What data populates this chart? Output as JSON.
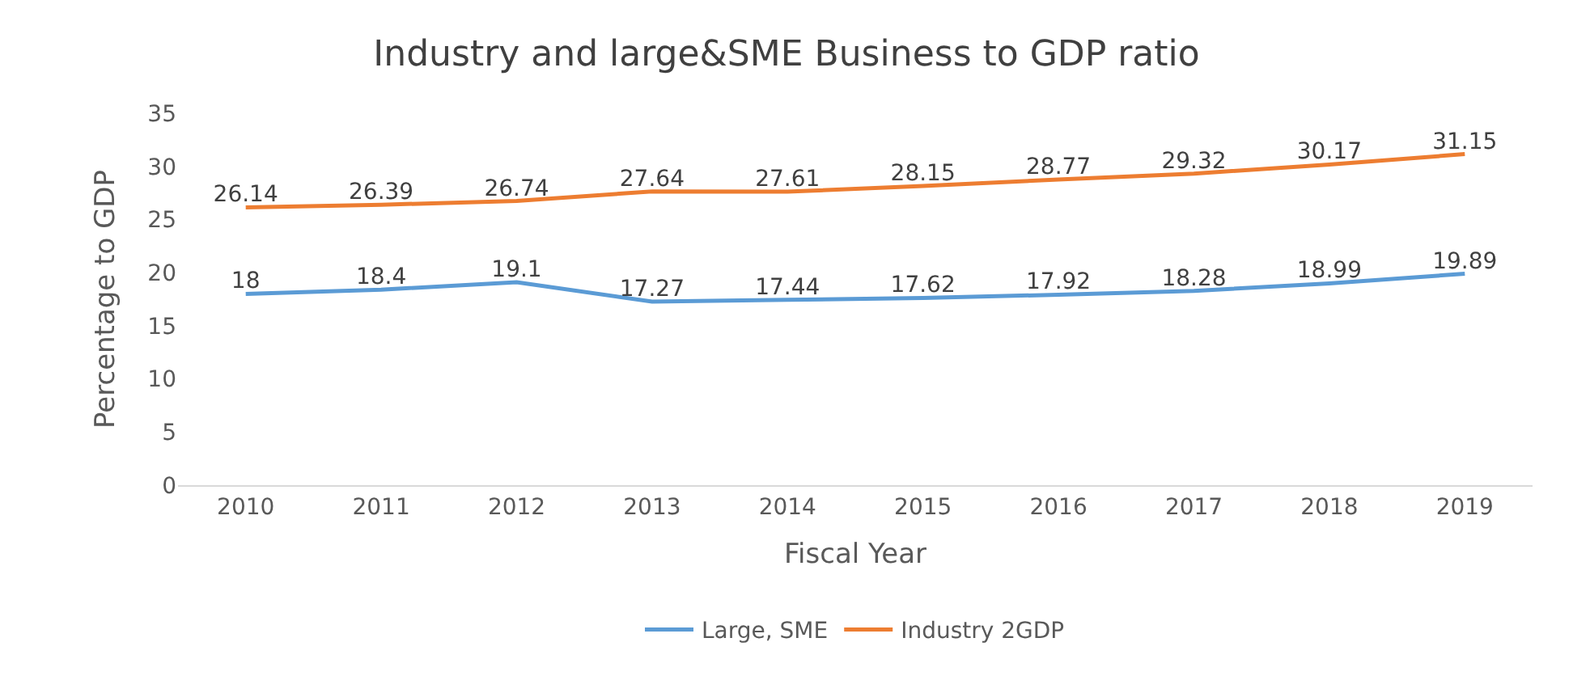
{
  "chart_data": {
    "type": "line",
    "title": "Industry and large&SME Business to GDP ratio",
    "xlabel": "Fiscal Year",
    "ylabel": "Percentage to GDP",
    "categories": [
      "2010",
      "2011",
      "2012",
      "2013",
      "2014",
      "2015",
      "2016",
      "2017",
      "2018",
      "2019"
    ],
    "series": [
      {
        "name": "Large, SME",
        "color": "#5b9bd5",
        "values": [
          18,
          18.4,
          19.1,
          17.27,
          17.44,
          17.62,
          17.92,
          18.28,
          18.99,
          19.89
        ]
      },
      {
        "name": "Industry 2GDP",
        "color": "#ed7d31",
        "values": [
          26.14,
          26.39,
          26.74,
          27.64,
          27.61,
          28.15,
          28.77,
          29.32,
          30.17,
          31.15
        ]
      }
    ],
    "ylim": [
      0,
      35
    ],
    "yticks": [
      0,
      5,
      10,
      15,
      20,
      25,
      30,
      35
    ],
    "grid": false,
    "legend": "bottom",
    "data_labels": true,
    "marker": "none",
    "line_style": "solid"
  }
}
